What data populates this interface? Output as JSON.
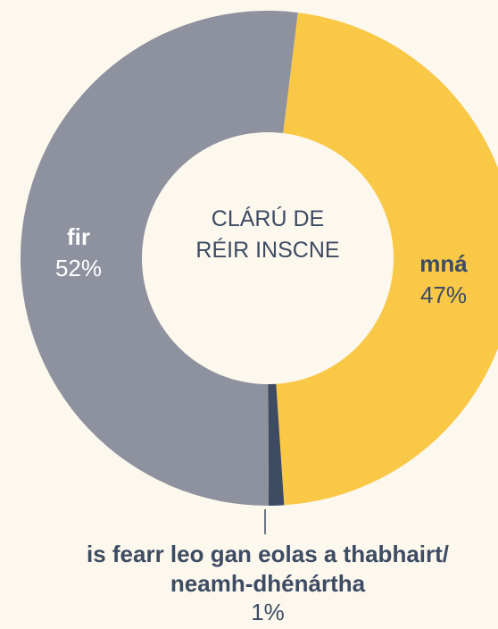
{
  "chart_data": {
    "type": "donut",
    "title": "CLÁRÚ DE RÉIR INSCNE",
    "categories": [
      "mná",
      "is fearr leo gan eolas a thabhairt/ neamh-dhénártha",
      "fir"
    ],
    "values": [
      47,
      1,
      52
    ],
    "value_labels": [
      "47%",
      "1%",
      "52%"
    ],
    "colors": [
      "#f9c846",
      "#3d4b63",
      "#8e919e"
    ]
  }
}
